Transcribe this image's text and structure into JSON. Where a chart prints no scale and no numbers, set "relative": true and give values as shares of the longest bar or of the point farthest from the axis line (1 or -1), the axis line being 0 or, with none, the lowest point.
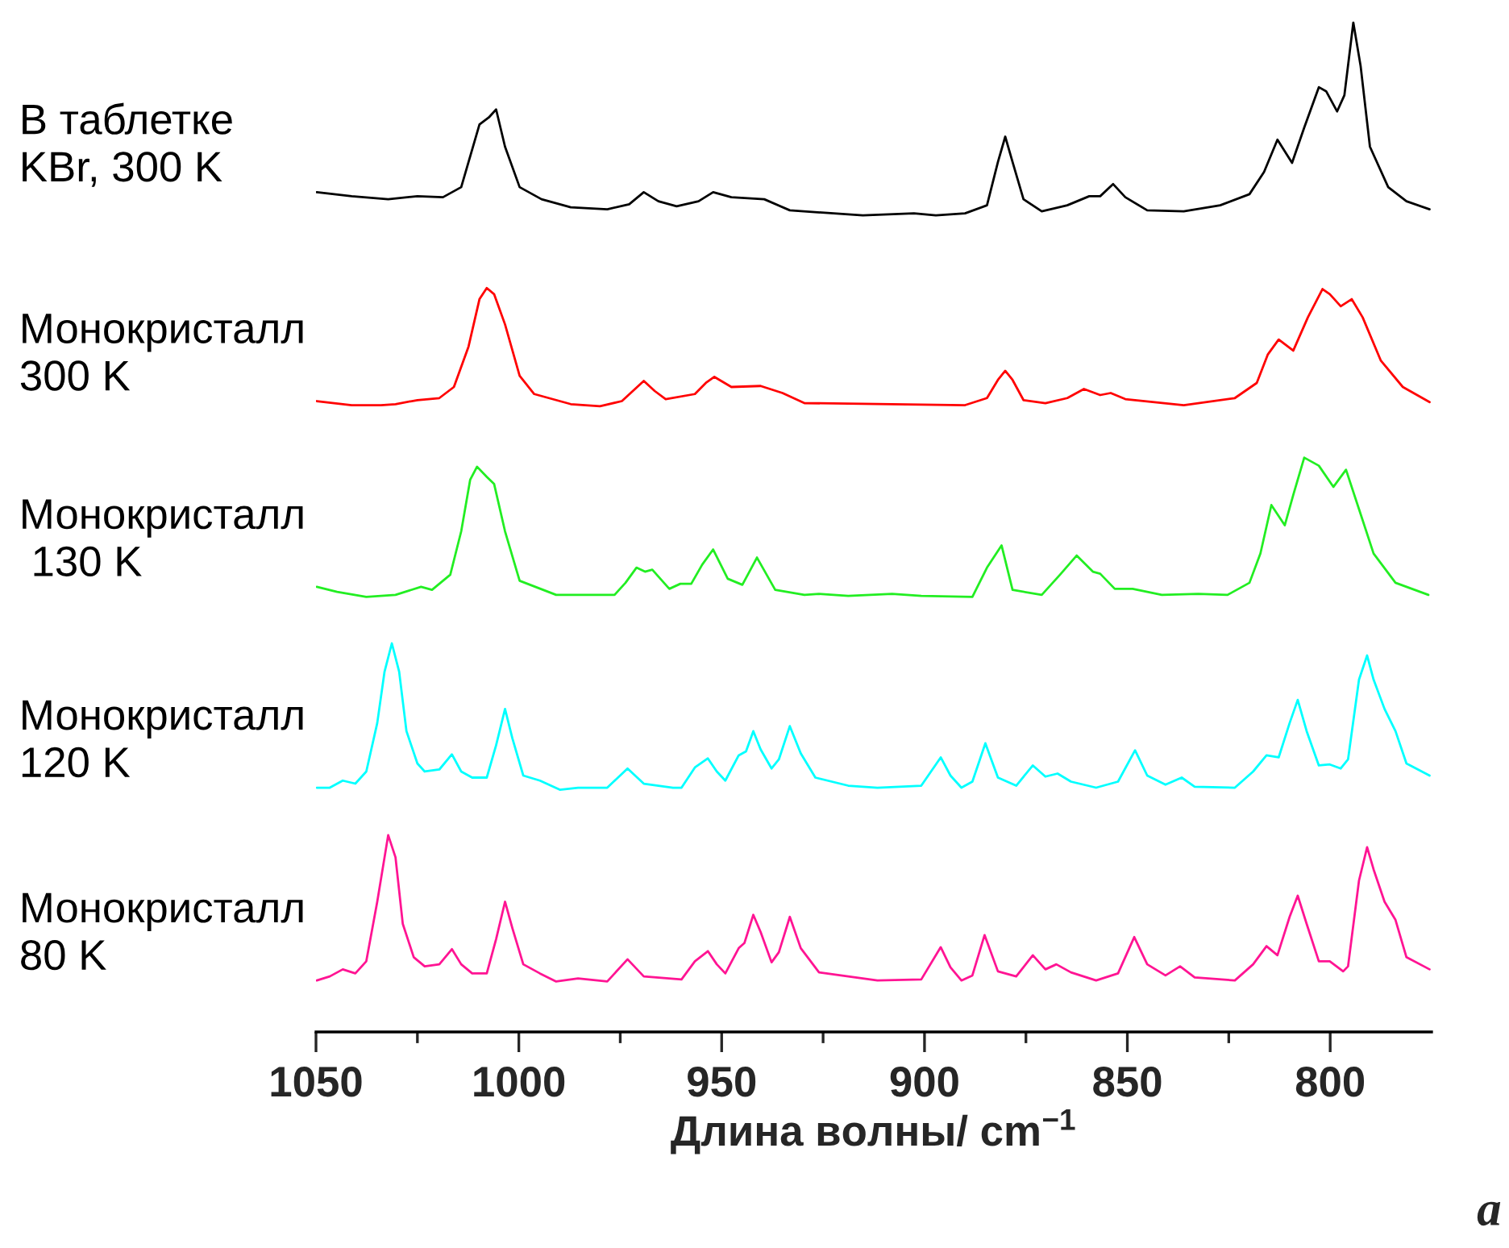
{
  "chart_data": {
    "type": "line",
    "relative": true,
    "xlabel": "Длина волны/ cm$^{−1}$",
    "xlim": [
      1050,
      775
    ],
    "xticks": [
      1050,
      {
        "value": 1025,
        "label": null
      },
      1000,
      {
        "value": 975,
        "label": null
      },
      950,
      {
        "value": 925,
        "label": null
      },
      900,
      {
        "value": 875,
        "label": null
      },
      850,
      {
        "value": 825,
        "label": null
      },
      800
    ],
    "grid": false,
    "legend": false,
    "marker": "none",
    "line_style": "solid",
    "annotations": [
      "a"
    ],
    "series": [
      {
        "name": "В таблетке\nKBr, 300 K",
        "color": "#000000",
        "x": [
          1049.8,
          1041.2,
          1032.2,
          1025.0,
          1018.7,
          1014.2,
          1009.7,
          1007.4,
          1005.6,
          1003.4,
          999.8,
          994.4,
          987.2,
          978.2,
          972.8,
          969.2,
          965.6,
          961.1,
          955.7,
          952.1,
          947.6,
          939.5,
          933.2,
          922.4,
          915.2,
          902.6,
          897.2,
          890.0,
          884.6,
          881.9,
          880.1,
          878.3,
          875.6,
          871.1,
          864.8,
          859.4,
          856.7,
          853.5,
          850.5,
          845.1,
          836.1,
          827.1,
          819.9,
          816.3,
          813.0,
          809.4,
          806.4,
          802.8,
          801.0,
          798.3,
          796.5,
          794.3,
          792.5,
          790.2,
          785.7,
          781.2,
          775.5
        ],
        "values": [
          0.832,
          0.828,
          0.825,
          0.828,
          0.827,
          0.837,
          0.899,
          0.906,
          0.914,
          0.877,
          0.837,
          0.825,
          0.817,
          0.815,
          0.82,
          0.832,
          0.823,
          0.818,
          0.823,
          0.832,
          0.827,
          0.825,
          0.814,
          0.811,
          0.809,
          0.811,
          0.809,
          0.811,
          0.819,
          0.862,
          0.887,
          0.862,
          0.825,
          0.813,
          0.819,
          0.828,
          0.828,
          0.84,
          0.827,
          0.814,
          0.813,
          0.819,
          0.83,
          0.852,
          0.884,
          0.861,
          0.896,
          0.936,
          0.932,
          0.912,
          0.928,
          1.0,
          0.957,
          0.877,
          0.837,
          0.823,
          0.815
        ]
      },
      {
        "name": "Монокристалл\n300 K",
        "color": "#ff0000",
        "x": [
          1049.8,
          1041.2,
          1034.0,
          1030.4,
          1025.0,
          1019.6,
          1016.0,
          1012.4,
          1009.7,
          1007.9,
          1006.1,
          1003.4,
          999.8,
          996.2,
          987.2,
          980.0,
          974.6,
          971.9,
          969.2,
          966.5,
          963.8,
          956.6,
          953.9,
          951.8,
          947.6,
          940.4,
          935.0,
          929.6,
          908.0,
          890.0,
          884.6,
          881.9,
          880.1,
          878.3,
          875.6,
          870.2,
          864.8,
          860.7,
          856.7,
          854.1,
          850.5,
          836.1,
          823.5,
          818.1,
          815.4,
          812.7,
          809.1,
          805.5,
          801.9,
          800.1,
          797.4,
          794.7,
          792.0,
          787.5,
          782.1,
          775.5
        ],
        "values": [
          0.625,
          0.621,
          0.621,
          0.622,
          0.626,
          0.628,
          0.639,
          0.679,
          0.726,
          0.737,
          0.731,
          0.701,
          0.65,
          0.632,
          0.622,
          0.62,
          0.625,
          0.635,
          0.645,
          0.635,
          0.627,
          0.632,
          0.643,
          0.649,
          0.639,
          0.64,
          0.633,
          0.623,
          0.622,
          0.621,
          0.628,
          0.646,
          0.655,
          0.646,
          0.626,
          0.623,
          0.628,
          0.637,
          0.631,
          0.633,
          0.627,
          0.621,
          0.628,
          0.643,
          0.671,
          0.686,
          0.675,
          0.708,
          0.736,
          0.731,
          0.719,
          0.726,
          0.708,
          0.665,
          0.639,
          0.624
        ]
      },
      {
        "name": "Монокристалл\n 130 K",
        "color": "#22ee22",
        "x": [
          1049.8,
          1044.8,
          1037.6,
          1030.4,
          1024.1,
          1021.4,
          1016.9,
          1014.2,
          1012.0,
          1010.3,
          1007.9,
          1006.1,
          1003.4,
          999.8,
          990.8,
          983.6,
          976.4,
          973.7,
          971.0,
          968.9,
          967.1,
          962.9,
          960.2,
          957.5,
          954.8,
          952.1,
          948.5,
          944.9,
          941.3,
          936.8,
          929.6,
          926.0,
          918.8,
          908.0,
          900.8,
          888.2,
          884.6,
          881.0,
          878.3,
          871.1,
          866.6,
          862.5,
          858.5,
          856.7,
          853.1,
          848.7,
          841.5,
          832.5,
          825.3,
          819.9,
          817.2,
          814.5,
          811.2,
          809.1,
          806.4,
          802.8,
          799.2,
          796.1,
          792.9,
          789.3,
          783.9,
          775.8
        ],
        "values": [
          0.441,
          0.436,
          0.431,
          0.433,
          0.441,
          0.438,
          0.453,
          0.496,
          0.547,
          0.56,
          0.55,
          0.543,
          0.496,
          0.447,
          0.433,
          0.433,
          0.433,
          0.445,
          0.46,
          0.456,
          0.458,
          0.439,
          0.444,
          0.444,
          0.463,
          0.478,
          0.449,
          0.443,
          0.47,
          0.438,
          0.433,
          0.434,
          0.432,
          0.434,
          0.432,
          0.431,
          0.46,
          0.482,
          0.438,
          0.433,
          0.453,
          0.472,
          0.456,
          0.454,
          0.439,
          0.439,
          0.433,
          0.434,
          0.433,
          0.445,
          0.474,
          0.522,
          0.502,
          0.532,
          0.569,
          0.561,
          0.54,
          0.557,
          0.518,
          0.474,
          0.445,
          0.433
        ]
      },
      {
        "name": "Монокристалл\n120 K",
        "color": "#00ffff",
        "x": [
          1049.8,
          1046.6,
          1043.4,
          1040.3,
          1037.6,
          1034.9,
          1033.1,
          1031.3,
          1029.5,
          1027.7,
          1025.0,
          1023.2,
          1019.6,
          1016.5,
          1014.2,
          1011.5,
          1007.9,
          1005.6,
          1003.4,
          1001.6,
          998.9,
          994.8,
          989.9,
          985.4,
          978.2,
          973.2,
          969.2,
          962.0,
          959.9,
          956.6,
          953.4,
          951.2,
          949.1,
          945.8,
          944.0,
          942.2,
          940.4,
          937.7,
          935.9,
          933.2,
          930.5,
          926.9,
          918.8,
          911.6,
          900.8,
          896.0,
          893.6,
          890.9,
          888.2,
          885.0,
          881.9,
          877.4,
          873.3,
          870.2,
          867.2,
          863.9,
          857.7,
          852.3,
          848.1,
          845.1,
          840.6,
          836.6,
          833.4,
          823.5,
          819.0,
          815.7,
          812.7,
          810.0,
          808.0,
          805.8,
          802.8,
          800.1,
          797.4,
          795.6,
          792.9,
          790.9,
          789.3,
          786.6,
          783.9,
          781.2,
          775.5
        ],
        "values": [
          0.242,
          0.242,
          0.249,
          0.246,
          0.258,
          0.306,
          0.357,
          0.385,
          0.357,
          0.298,
          0.266,
          0.258,
          0.26,
          0.275,
          0.258,
          0.252,
          0.252,
          0.284,
          0.32,
          0.291,
          0.254,
          0.249,
          0.24,
          0.242,
          0.242,
          0.261,
          0.246,
          0.242,
          0.242,
          0.262,
          0.271,
          0.258,
          0.249,
          0.274,
          0.278,
          0.298,
          0.28,
          0.261,
          0.27,
          0.303,
          0.276,
          0.252,
          0.244,
          0.242,
          0.244,
          0.272,
          0.254,
          0.242,
          0.248,
          0.286,
          0.252,
          0.244,
          0.264,
          0.253,
          0.256,
          0.248,
          0.242,
          0.248,
          0.279,
          0.254,
          0.245,
          0.252,
          0.243,
          0.242,
          0.258,
          0.274,
          0.272,
          0.306,
          0.329,
          0.298,
          0.264,
          0.265,
          0.261,
          0.27,
          0.349,
          0.373,
          0.349,
          0.32,
          0.298,
          0.266,
          0.254
        ]
      },
      {
        "name": "Монокристалл\n80 K",
        "color": "#ff1493",
        "x": [
          1049.8,
          1046.6,
          1043.4,
          1040.3,
          1037.6,
          1034.9,
          1032.2,
          1030.4,
          1028.6,
          1025.9,
          1023.2,
          1019.6,
          1016.5,
          1014.2,
          1011.5,
          1007.9,
          1005.6,
          1003.4,
          1001.6,
          998.9,
          994.8,
          990.8,
          985.4,
          978.2,
          973.2,
          969.2,
          959.9,
          956.6,
          953.4,
          951.2,
          949.1,
          945.8,
          944.4,
          942.2,
          940.4,
          937.7,
          935.9,
          933.2,
          930.5,
          926.0,
          918.8,
          911.6,
          900.8,
          896.0,
          893.6,
          890.9,
          888.2,
          885.2,
          881.9,
          877.4,
          873.3,
          870.2,
          867.5,
          863.9,
          857.7,
          852.3,
          848.3,
          845.1,
          840.6,
          837.0,
          833.4,
          823.5,
          819.0,
          815.7,
          813.0,
          810.0,
          808.0,
          805.8,
          802.8,
          800.1,
          796.8,
          795.6,
          792.9,
          790.9,
          789.3,
          786.6,
          783.9,
          781.2,
          775.5
        ],
        "values": [
          0.051,
          0.055,
          0.062,
          0.058,
          0.07,
          0.129,
          0.195,
          0.173,
          0.107,
          0.074,
          0.065,
          0.067,
          0.082,
          0.067,
          0.058,
          0.058,
          0.092,
          0.129,
          0.103,
          0.067,
          0.058,
          0.05,
          0.053,
          0.05,
          0.072,
          0.055,
          0.052,
          0.07,
          0.08,
          0.067,
          0.058,
          0.083,
          0.088,
          0.116,
          0.099,
          0.069,
          0.079,
          0.114,
          0.083,
          0.059,
          0.055,
          0.051,
          0.052,
          0.084,
          0.064,
          0.051,
          0.056,
          0.096,
          0.06,
          0.055,
          0.076,
          0.062,
          0.067,
          0.059,
          0.051,
          0.058,
          0.094,
          0.067,
          0.056,
          0.065,
          0.054,
          0.051,
          0.067,
          0.085,
          0.076,
          0.114,
          0.135,
          0.107,
          0.07,
          0.07,
          0.06,
          0.065,
          0.15,
          0.183,
          0.161,
          0.129,
          0.111,
          0.074,
          0.062
        ]
      }
    ]
  }
}
